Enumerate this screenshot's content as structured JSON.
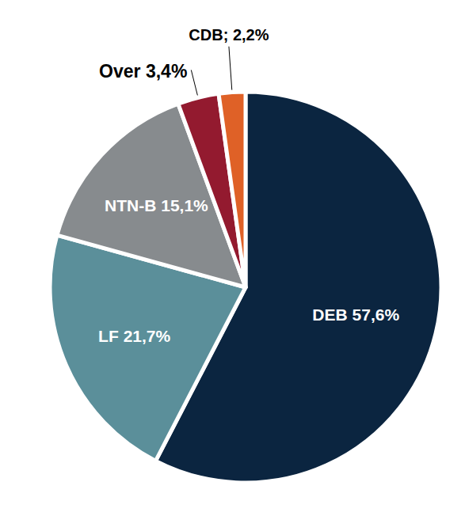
{
  "chart_data": {
    "type": "pie",
    "categories": [
      "DEB",
      "LF",
      "NTN-B",
      "Over",
      "CDB;"
    ],
    "values": [
      57.6,
      21.7,
      15.1,
      3.4,
      2.2
    ],
    "value_labels": [
      "57,6%",
      "21,7%",
      "15,1%",
      "3,4%",
      "2,2%"
    ],
    "colors": [
      "#0b2540",
      "#5b8f9a",
      "#878b8e",
      "#931a2f",
      "#df6127"
    ],
    "data_labels": true
  }
}
